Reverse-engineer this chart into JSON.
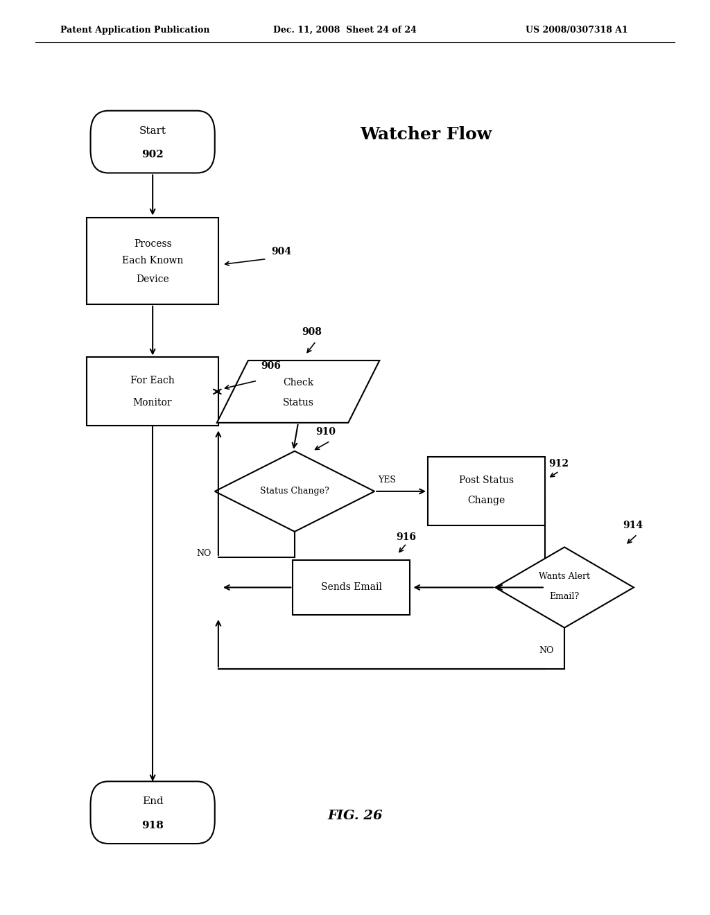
{
  "title_header": "Patent Application Publication",
  "date_header": "Dec. 11, 2008  Sheet 24 of 24",
  "patent_header": "US 2008/0307318 A1",
  "watcher_flow_title": "Watcher Flow",
  "fig_label": "FIG. 26",
  "bg_color": "#ffffff",
  "line_color": "#000000",
  "start_label1": "Start",
  "start_label2": "902",
  "process_label1": "Process",
  "process_label2": "Each Known",
  "process_label3": "Device",
  "process_ref": "904",
  "foreach_label1": "For Each",
  "foreach_label2": "Monitor",
  "foreach_ref": "906",
  "check_label1": "Check",
  "check_label2": "Status",
  "check_ref": "908",
  "status_label": "Status Change?",
  "status_ref": "910",
  "post_label1": "Post Status",
  "post_label2": "Change",
  "post_ref": "912",
  "wants_label1": "Wants Alert",
  "wants_label2": "Email?",
  "wants_ref": "914",
  "sends_label": "Sends Email",
  "sends_ref": "916",
  "end_label1": "End",
  "end_label2": "918",
  "yes_text": "YES",
  "no_text1": "NO",
  "no_text2": "NO"
}
